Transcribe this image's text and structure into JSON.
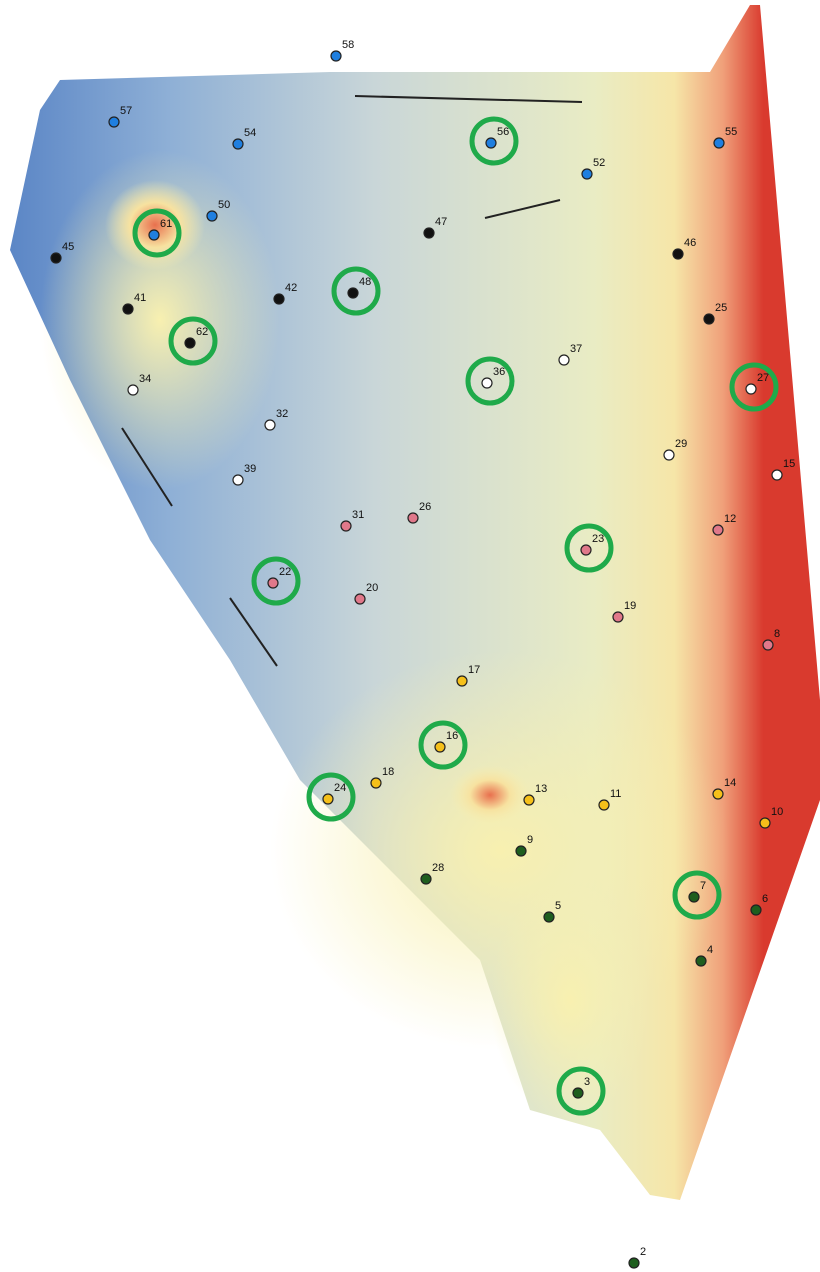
{
  "groups": [
    {
      "color": "#1f7fe0",
      "points": [
        {
          "label": "58",
          "circled": false
        },
        {
          "label": "57",
          "circled": false
        },
        {
          "label": "54",
          "circled": false
        },
        {
          "label": "56",
          "circled": true
        },
        {
          "label": "55",
          "circled": false
        },
        {
          "label": "52",
          "circled": false
        },
        {
          "label": "50",
          "circled": false
        },
        {
          "label": "61",
          "circled": true
        }
      ]
    },
    {
      "color": "#111111",
      "points": [
        {
          "label": "45",
          "circled": false
        },
        {
          "label": "47",
          "circled": false
        },
        {
          "label": "46",
          "circled": false
        },
        {
          "label": "42",
          "circled": false
        },
        {
          "label": "48",
          "circled": true
        },
        {
          "label": "41",
          "circled": false
        },
        {
          "label": "25",
          "circled": false
        },
        {
          "label": "62",
          "circled": true
        }
      ]
    },
    {
      "color": "#ffffff",
      "points": [
        {
          "label": "37",
          "circled": false
        },
        {
          "label": "34",
          "circled": false
        },
        {
          "label": "36",
          "circled": true
        },
        {
          "label": "27",
          "circled": true
        },
        {
          "label": "32",
          "circled": false
        },
        {
          "label": "29",
          "circled": false
        },
        {
          "label": "15",
          "circled": false
        },
        {
          "label": "39",
          "circled": false
        }
      ]
    },
    {
      "color": "#e0788a",
      "points": [
        {
          "label": "31",
          "circled": false
        },
        {
          "label": "26",
          "circled": false
        },
        {
          "label": "12",
          "circled": false
        },
        {
          "label": "23",
          "circled": true
        },
        {
          "label": "22",
          "circled": true
        },
        {
          "label": "20",
          "circled": false
        },
        {
          "label": "19",
          "circled": false
        },
        {
          "label": "8",
          "circled": false
        }
      ]
    },
    {
      "color": "#f5c01a",
      "points": [
        {
          "label": "17",
          "circled": false
        },
        {
          "label": "16",
          "circled": true
        },
        {
          "label": "18",
          "circled": false
        },
        {
          "label": "24",
          "circled": true
        },
        {
          "label": "13",
          "circled": false
        },
        {
          "label": "11",
          "circled": false
        },
        {
          "label": "14",
          "circled": false
        },
        {
          "label": "10",
          "circled": false
        }
      ]
    },
    {
      "color": "#1e5e1e",
      "points": [
        {
          "label": "9",
          "circled": false
        },
        {
          "label": "28",
          "circled": false
        },
        {
          "label": "7",
          "circled": true
        },
        {
          "label": "6",
          "circled": false
        },
        {
          "label": "5",
          "circled": false
        },
        {
          "label": "4",
          "circled": false
        },
        {
          "label": "3",
          "circled": true
        },
        {
          "label": "2",
          "circled": false
        }
      ]
    }
  ]
}
